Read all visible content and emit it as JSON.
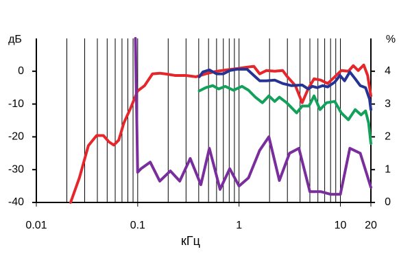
{
  "chart_data": {
    "type": "line",
    "xlabel": "кГц",
    "ylabel": "дБ",
    "y2label": "%",
    "xscale": "log",
    "xlim": [
      0.01,
      20
    ],
    "xticks": [
      0.01,
      0.1,
      1,
      10,
      20
    ],
    "xminorticks": [
      0.02,
      0.03,
      0.04,
      0.05,
      0.06,
      0.07,
      0.08,
      0.09,
      0.2,
      0.3,
      0.4,
      0.5,
      0.6,
      0.7,
      0.8,
      0.9,
      2,
      3,
      4,
      5,
      6,
      7,
      8,
      9
    ],
    "ylim": [
      -40,
      10
    ],
    "yticks": [
      -40,
      -30,
      -20,
      -10,
      0
    ],
    "y2lim": [
      0,
      5
    ],
    "y2ticks": [
      0,
      1,
      2,
      3,
      4
    ],
    "series": [
      {
        "color": "#e5262b",
        "x": [
          0.0218,
          0.0266,
          0.0326,
          0.0393,
          0.0459,
          0.052,
          0.058,
          0.065,
          0.073,
          0.085,
          0.1,
          0.117,
          0.14,
          0.165,
          0.186,
          0.235,
          0.3,
          0.375,
          0.47,
          0.6,
          0.75,
          0.95,
          1.2,
          1.4,
          1.6,
          1.86,
          2.25,
          2.7,
          3.0,
          3.6,
          4.2,
          4.8,
          5.5,
          6.4,
          7.5,
          8.8,
          10.2,
          12,
          13.4,
          15,
          17,
          18.6,
          20
        ],
        "values": [
          -40,
          -32.5,
          -22.7,
          -19.6,
          -19.6,
          -21.5,
          -22.5,
          -21,
          -15.8,
          -11.3,
          -6,
          -4.4,
          -0.8,
          -0.6,
          -0.8,
          -1.3,
          -1.3,
          -1.7,
          -0.8,
          0,
          0.4,
          0.8,
          1.25,
          1.5,
          -0.8,
          0.2,
          0,
          0.2,
          -1.7,
          -4.4,
          -9.6,
          -5.4,
          -2.3,
          -2.7,
          -3.75,
          -1.7,
          0.2,
          0,
          1.7,
          0.2,
          1.9,
          -1.3,
          -7.5
        ]
      },
      {
        "color": "#253494",
        "x": [
          0.405,
          0.44,
          0.51,
          0.6,
          0.7,
          0.81,
          0.95,
          1.2,
          1.4,
          1.6,
          1.86,
          2.25,
          2.7,
          3.3,
          4.2,
          4.8,
          5.3,
          5.9,
          6.7,
          7.5,
          8.8,
          9.9,
          11,
          12.4,
          14,
          15.7,
          17.7,
          19.4,
          20
        ],
        "values": [
          -1.7,
          -0.2,
          0.4,
          -0.8,
          -0.8,
          0.2,
          0.6,
          0.6,
          -1.3,
          -2.9,
          -2.9,
          -2.7,
          -3.75,
          -4.4,
          -4.2,
          -5.4,
          -4.6,
          -5,
          -4.4,
          -4.8,
          -3.3,
          -1.3,
          -2.9,
          -0.2,
          -2.3,
          -4.4,
          -5,
          -8.5,
          -11.7
        ]
      },
      {
        "color": "#12a05a",
        "x": [
          0.405,
          0.47,
          0.55,
          0.63,
          0.73,
          0.88,
          1.07,
          1.24,
          1.45,
          1.7,
          1.97,
          2.25,
          2.5,
          2.95,
          3.7,
          4.2,
          4.9,
          5.5,
          6.3,
          7.3,
          8.8,
          10.2,
          12,
          14,
          16,
          17.7,
          19,
          20
        ],
        "values": [
          -6,
          -5,
          -4.4,
          -5.4,
          -4.6,
          -5.8,
          -4.6,
          -5.8,
          -7.9,
          -9.6,
          -7.5,
          -9.2,
          -7.9,
          -9.6,
          -12.7,
          -10.6,
          -10.6,
          -7.5,
          -11.7,
          -9.6,
          -9.2,
          -12.7,
          -14.8,
          -11.7,
          -13.3,
          -12.1,
          -15.8,
          -22
        ]
      },
      {
        "color": "#7a2d9c",
        "axis": "y2",
        "x": [
          0.095,
          0.1,
          0.108,
          0.133,
          0.165,
          0.21,
          0.26,
          0.33,
          0.42,
          0.51,
          0.65,
          0.81,
          1.0,
          1.24,
          1.6,
          1.97,
          2.5,
          3.15,
          3.9,
          5.0,
          6.4,
          8.0,
          10,
          12.4,
          15.7,
          20
        ],
        "values": [
          5,
          0.92,
          1.03,
          1.23,
          0.65,
          0.96,
          0.65,
          1.34,
          0.54,
          1.65,
          0.4,
          1.03,
          0.5,
          0.75,
          1.59,
          2.0,
          0.67,
          1.5,
          1.65,
          0.33,
          0.33,
          0.25,
          0.25,
          1.65,
          1.5,
          0.46
        ]
      }
    ]
  }
}
